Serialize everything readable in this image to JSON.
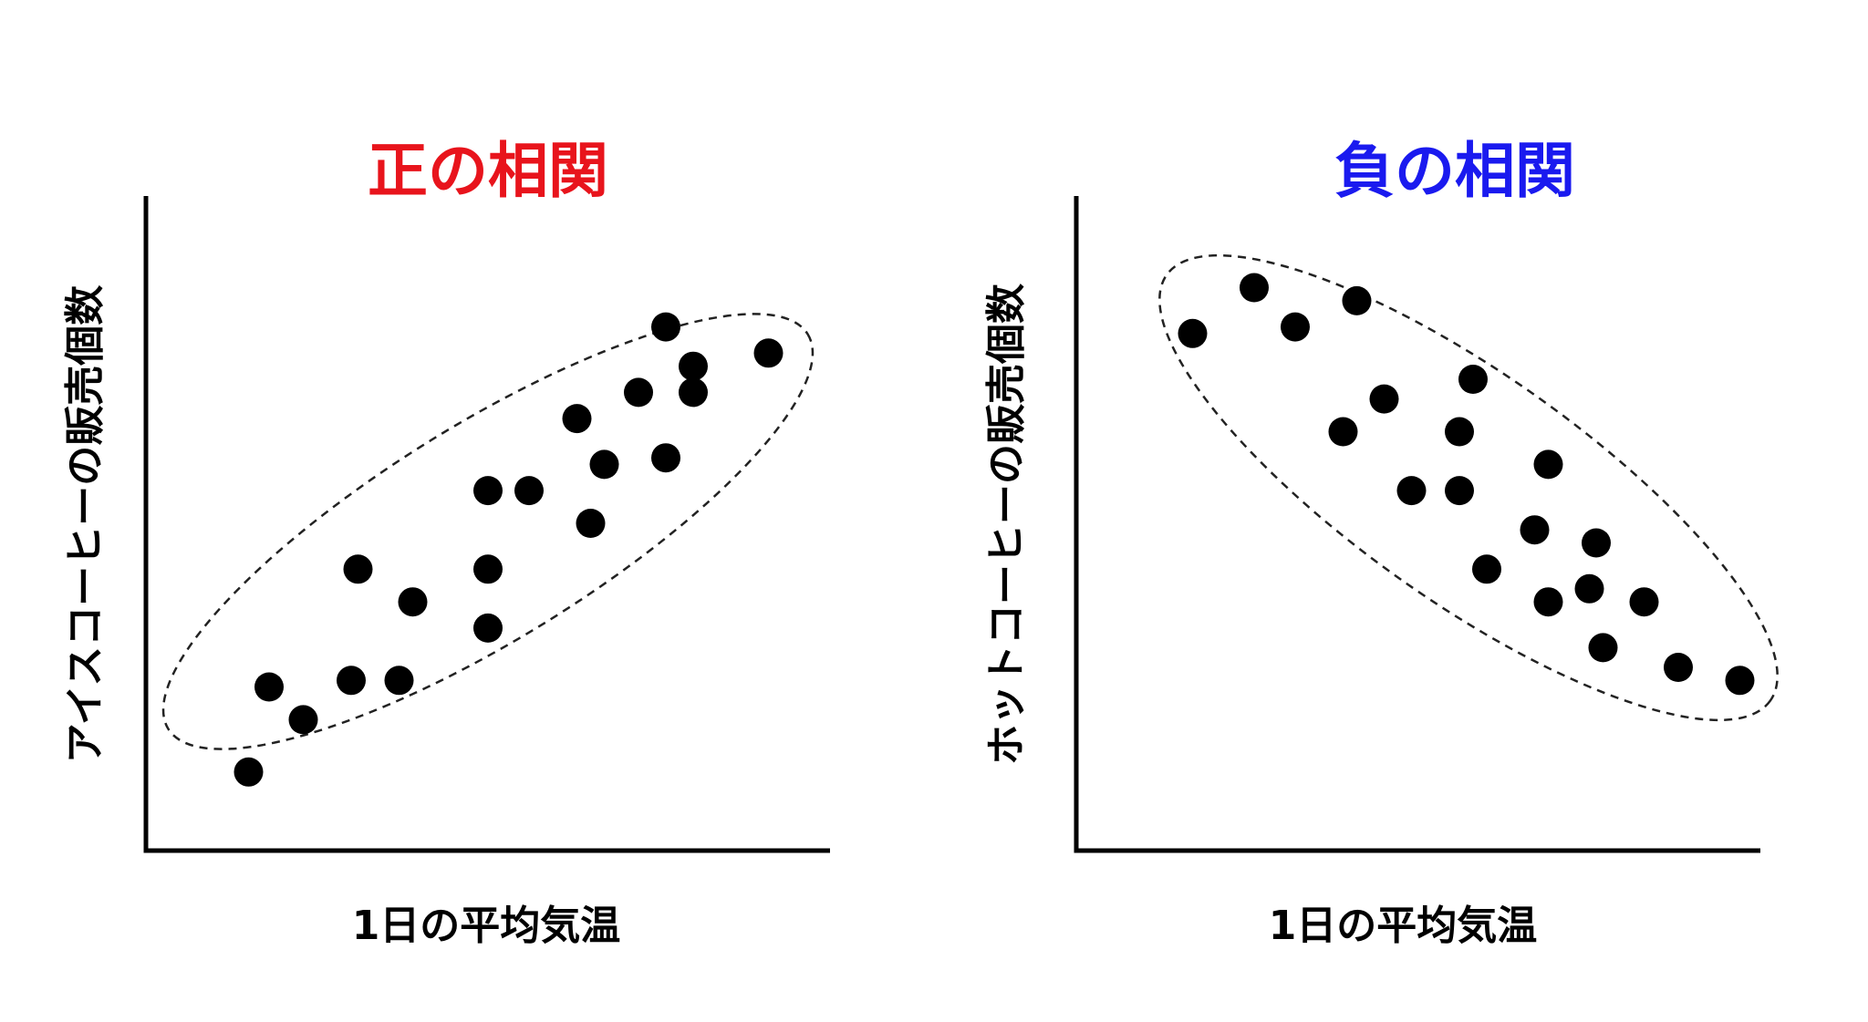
{
  "chart_data": [
    {
      "type": "scatter",
      "title": "正の相関",
      "title_color": "#e8141c",
      "xlabel": "1日の平均気温",
      "ylabel": "アイスコーヒーの販売個数",
      "grid": false,
      "xlim": [
        0,
        10
      ],
      "ylim": [
        0,
        10
      ],
      "points": [
        {
          "x": 1.5,
          "y": 1.2
        },
        {
          "x": 1.8,
          "y": 2.5
        },
        {
          "x": 2.3,
          "y": 2.0
        },
        {
          "x": 3.0,
          "y": 2.6
        },
        {
          "x": 3.1,
          "y": 4.3
        },
        {
          "x": 3.7,
          "y": 2.6
        },
        {
          "x": 3.9,
          "y": 3.8
        },
        {
          "x": 5.0,
          "y": 5.5
        },
        {
          "x": 5.0,
          "y": 4.3
        },
        {
          "x": 5.0,
          "y": 3.4
        },
        {
          "x": 5.6,
          "y": 5.5
        },
        {
          "x": 6.3,
          "y": 6.6
        },
        {
          "x": 6.5,
          "y": 5.0
        },
        {
          "x": 6.7,
          "y": 5.9
        },
        {
          "x": 7.2,
          "y": 7.0
        },
        {
          "x": 7.6,
          "y": 6.0
        },
        {
          "x": 7.6,
          "y": 8.0
        },
        {
          "x": 8.0,
          "y": 7.4
        },
        {
          "x": 8.0,
          "y": 7.0
        },
        {
          "x": 9.1,
          "y": 7.6
        }
      ],
      "enclosure": "dashed ellipse around points"
    },
    {
      "type": "scatter",
      "title": "負の相関",
      "title_color": "#1a1aef",
      "xlabel": "1日の平均気温",
      "ylabel": "ホットコーヒーの販売個数",
      "grid": false,
      "xlim": [
        0,
        10
      ],
      "ylim": [
        0,
        10
      ],
      "points": [
        {
          "x": 1.7,
          "y": 7.9
        },
        {
          "x": 2.6,
          "y": 8.6
        },
        {
          "x": 3.2,
          "y": 8.0
        },
        {
          "x": 4.1,
          "y": 8.4
        },
        {
          "x": 3.9,
          "y": 6.4
        },
        {
          "x": 4.5,
          "y": 6.9
        },
        {
          "x": 4.9,
          "y": 5.5
        },
        {
          "x": 5.6,
          "y": 5.5
        },
        {
          "x": 5.6,
          "y": 6.4
        },
        {
          "x": 5.8,
          "y": 7.2
        },
        {
          "x": 6.0,
          "y": 4.3
        },
        {
          "x": 6.7,
          "y": 4.9
        },
        {
          "x": 6.9,
          "y": 5.9
        },
        {
          "x": 6.9,
          "y": 3.8
        },
        {
          "x": 7.5,
          "y": 4.0
        },
        {
          "x": 7.6,
          "y": 4.7
        },
        {
          "x": 7.7,
          "y": 3.1
        },
        {
          "x": 8.3,
          "y": 3.8
        },
        {
          "x": 8.8,
          "y": 2.8
        },
        {
          "x": 9.7,
          "y": 2.6
        }
      ],
      "enclosure": "dashed ellipse around points"
    }
  ]
}
